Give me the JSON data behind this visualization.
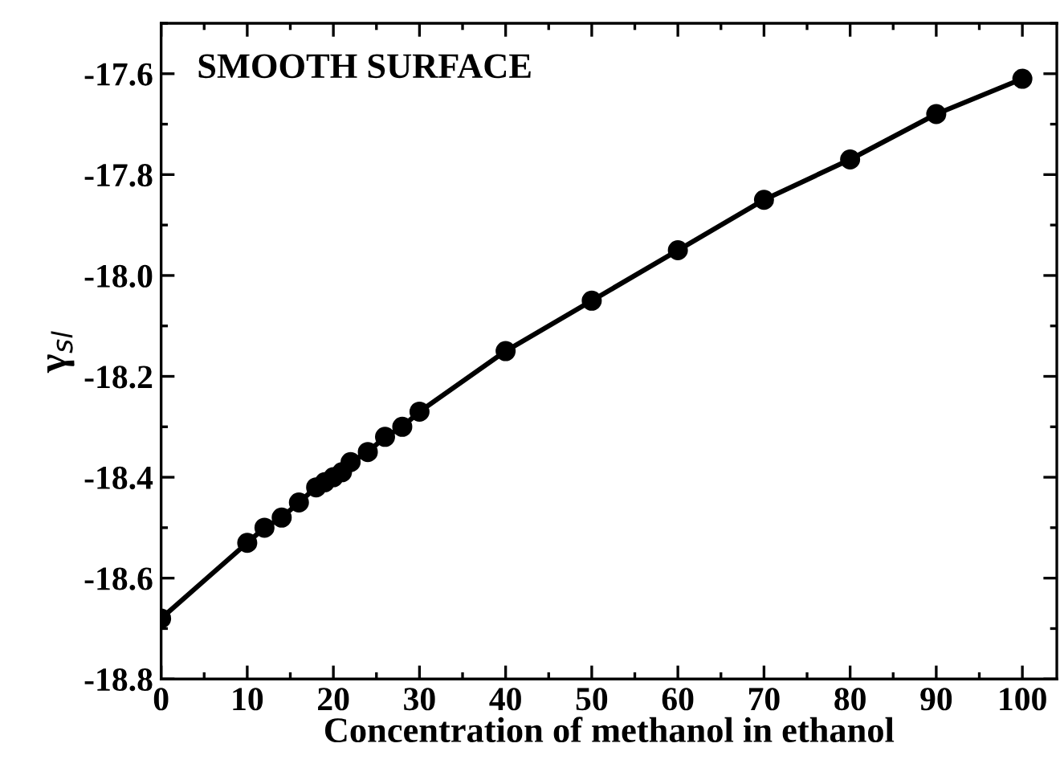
{
  "chart_data": {
    "type": "line",
    "xlabel": "Concentration of methanol in ethanol",
    "ylabel": "γ$_{sl}$",
    "annotations": [
      "SMOOTH SURFACE"
    ],
    "x": [
      0,
      10,
      12,
      14,
      16,
      18,
      19,
      20,
      21,
      22,
      24,
      26,
      28,
      30,
      40,
      50,
      60,
      70,
      80,
      90,
      100
    ],
    "series": [
      {
        "color": "#000000",
        "values": [
          -18.68,
          -18.53,
          -18.5,
          -18.48,
          -18.45,
          -18.42,
          -18.41,
          -18.4,
          -18.39,
          -18.37,
          -18.35,
          -18.32,
          -18.3,
          -18.27,
          -18.15,
          -18.05,
          -17.95,
          -17.85,
          -17.77,
          -17.68,
          -17.61
        ]
      }
    ],
    "marker": "circle",
    "line_style": "solid",
    "xlim": [
      0,
      104
    ],
    "xticks": [
      0,
      10,
      20,
      30,
      40,
      50,
      60,
      70,
      80,
      90,
      100
    ],
    "ylim": [
      -18.8,
      -17.5
    ],
    "yticks": [
      -18.8,
      -18.6,
      -18.4,
      -18.2,
      {
        "value": -18.0,
        "label": "-18.0"
      },
      -17.8,
      -17.6
    ]
  }
}
